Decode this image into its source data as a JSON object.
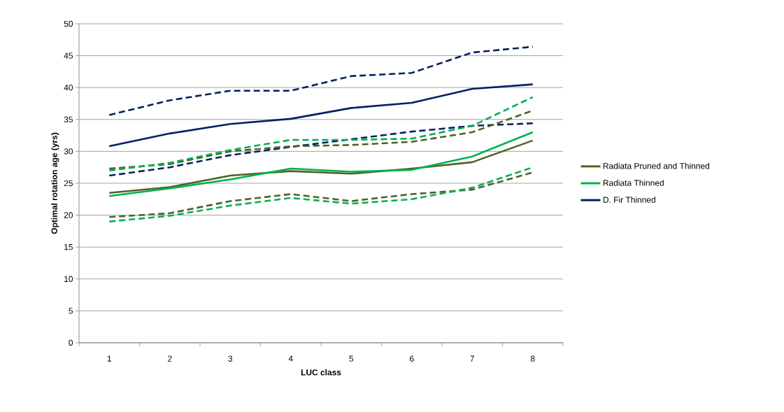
{
  "chart_data": {
    "type": "line",
    "xlabel": "LUC class",
    "ylabel": "Optimal rotation age (yrs)",
    "categories": [
      "1",
      "2",
      "3",
      "4",
      "5",
      "6",
      "7",
      "8"
    ],
    "ylim": [
      0,
      50
    ],
    "yticks": [
      0,
      5,
      10,
      15,
      20,
      25,
      30,
      35,
      40,
      45,
      50
    ],
    "grid": "y",
    "legend": "right",
    "marker": "none",
    "series": [
      {
        "name": "Radiata Pruned and Thinned",
        "color": "#4f6228",
        "line_style": "solid",
        "values": [
          23.5,
          24.4,
          26.2,
          26.9,
          26.5,
          27.3,
          28.3,
          31.7
        ]
      },
      {
        "name": "Radiata Thinned",
        "color": "#00b050",
        "line_style": "solid",
        "values": [
          23.0,
          24.2,
          25.6,
          27.3,
          26.8,
          27.1,
          29.2,
          33.0
        ]
      },
      {
        "name": "D. Fir Thinned",
        "color": "#002060",
        "line_style": "solid",
        "values": [
          30.8,
          32.8,
          34.3,
          35.1,
          36.8,
          37.6,
          39.8,
          40.5
        ]
      },
      {
        "color": "#002060",
        "line_style": "dashed",
        "values": [
          35.7,
          38.0,
          39.5,
          39.5,
          41.8,
          42.3,
          45.5,
          46.4
        ]
      },
      {
        "color": "#002060",
        "line_style": "dashed",
        "values": [
          26.2,
          27.5,
          29.4,
          30.7,
          31.9,
          33.1,
          34.0,
          34.4
        ]
      },
      {
        "color": "#4f6228",
        "line_style": "dashed",
        "values": [
          27.3,
          28.0,
          30.0,
          30.8,
          31.0,
          31.5,
          33.0,
          36.4
        ]
      },
      {
        "color": "#4f6228",
        "line_style": "dashed",
        "values": [
          19.7,
          20.3,
          22.2,
          23.3,
          22.2,
          23.3,
          24.0,
          26.7
        ]
      },
      {
        "color": "#00b050",
        "line_style": "dashed",
        "values": [
          27.0,
          28.2,
          30.2,
          31.8,
          31.8,
          32.0,
          34.0,
          38.5
        ]
      },
      {
        "color": "#00b050",
        "line_style": "dashed",
        "values": [
          19.0,
          19.9,
          21.5,
          22.7,
          21.8,
          22.5,
          24.3,
          27.5
        ]
      }
    ]
  }
}
